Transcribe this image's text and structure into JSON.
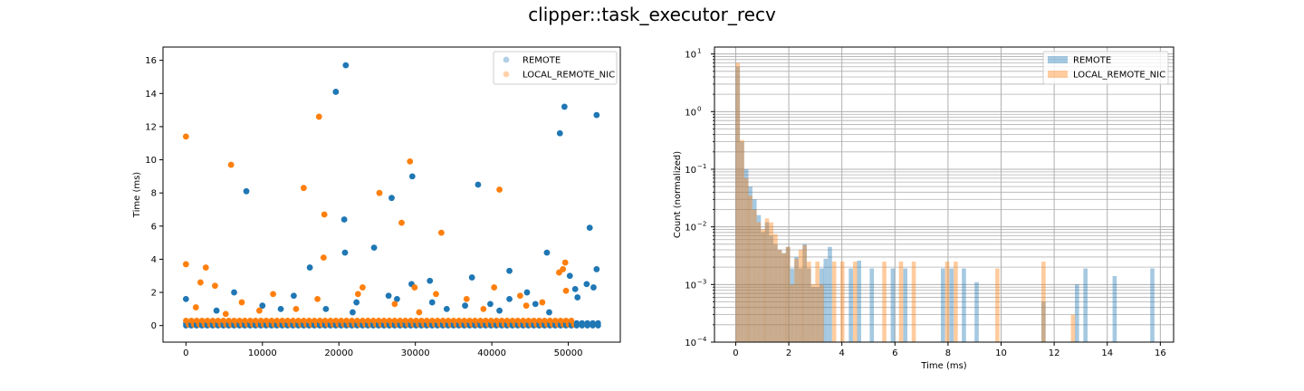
{
  "figure": {
    "title": "clipper::task_executor_recv"
  },
  "colors": {
    "remote": "#1f77b4",
    "local": "#ff7f0e",
    "grid": "#b0b0b0",
    "frame": "#000000"
  },
  "chart_data": [
    {
      "type": "scatter",
      "title": "",
      "xlabel": "",
      "ylabel": "Time (ms)",
      "xlim": [
        -3000,
        56800
      ],
      "ylim": [
        -1.0,
        16.8
      ],
      "xticks": [
        0,
        10000,
        20000,
        30000,
        40000,
        50000
      ],
      "xtick_labels": [
        "0",
        "10000",
        "20000",
        "30000",
        "40000",
        "50000"
      ],
      "yticks": [
        0,
        2,
        4,
        6,
        8,
        10,
        12,
        14,
        16
      ],
      "ytick_labels": [
        "0",
        "2",
        "4",
        "6",
        "8",
        "10",
        "12",
        "14",
        "16"
      ],
      "legend": {
        "placement": "top-right",
        "entries": [
          "REMOTE",
          "LOCAL_REMOTE_NIC"
        ]
      },
      "series": [
        {
          "name": "REMOTE",
          "color": "#1f77b4",
          "alpha": 0.35,
          "points": [
            [
              20900,
              15.7
            ],
            [
              19600,
              14.1
            ],
            [
              53700,
              12.7
            ],
            [
              49500,
              13.2
            ],
            [
              48900,
              11.6
            ],
            [
              29600,
              9.0
            ],
            [
              7900,
              8.1
            ],
            [
              38200,
              8.5
            ],
            [
              26900,
              7.7
            ],
            [
              20700,
              6.4
            ],
            [
              52800,
              5.9
            ],
            [
              24600,
              4.7
            ],
            [
              20800,
              4.4
            ],
            [
              47200,
              4.4
            ],
            [
              16200,
              3.5
            ],
            [
              53700,
              3.4
            ],
            [
              42300,
              3.3
            ],
            [
              50200,
              3.0
            ],
            [
              31900,
              2.7
            ],
            [
              37400,
              2.9
            ],
            [
              52400,
              2.5
            ],
            [
              50900,
              2.2
            ],
            [
              0,
              1.6
            ],
            [
              6300,
              2.0
            ],
            [
              14100,
              1.8
            ],
            [
              29500,
              2.5
            ],
            [
              44600,
              2.0
            ],
            [
              42300,
              1.6
            ],
            [
              51200,
              1.7
            ],
            [
              53300,
              2.3
            ],
            [
              26500,
              1.8
            ],
            [
              10000,
              1.2
            ],
            [
              22300,
              1.4
            ],
            [
              32200,
              1.4
            ],
            [
              36500,
              1.2
            ],
            [
              39800,
              1.3
            ],
            [
              45700,
              1.3
            ],
            [
              4000,
              0.9
            ],
            [
              12400,
              1.0
            ],
            [
              18300,
              1.0
            ],
            [
              34100,
              1.0
            ],
            [
              41000,
              0.9
            ],
            [
              47500,
              0.8
            ],
            [
              27600,
              1.6
            ],
            [
              21800,
              0.8
            ]
          ]
        },
        {
          "name": "LOCAL_REMOTE_NIC",
          "color": "#ff7f0e",
          "alpha": 0.35,
          "points": [
            [
              0,
              11.4
            ],
            [
              17400,
              12.6
            ],
            [
              5900,
              9.7
            ],
            [
              29300,
              9.9
            ],
            [
              15400,
              8.3
            ],
            [
              41000,
              8.2
            ],
            [
              25300,
              8.0
            ],
            [
              18100,
              6.7
            ],
            [
              28200,
              6.2
            ],
            [
              33400,
              5.6
            ],
            [
              0,
              3.7
            ],
            [
              18000,
              4.1
            ],
            [
              2600,
              3.5
            ],
            [
              48800,
              3.2
            ],
            [
              49600,
              3.8
            ],
            [
              49300,
              3.4
            ],
            [
              3800,
              2.4
            ],
            [
              1900,
              2.6
            ],
            [
              29900,
              2.3
            ],
            [
              23100,
              2.3
            ],
            [
              40300,
              2.3
            ],
            [
              49700,
              2.1
            ],
            [
              11400,
              1.9
            ],
            [
              17200,
              1.6
            ],
            [
              36700,
              1.6
            ],
            [
              32700,
              1.9
            ],
            [
              43700,
              1.8
            ],
            [
              1300,
              1.1
            ],
            [
              7300,
              1.4
            ],
            [
              22500,
              1.9
            ],
            [
              27300,
              1.3
            ],
            [
              46600,
              1.4
            ],
            [
              9600,
              0.9
            ],
            [
              14400,
              1.0
            ],
            [
              38900,
              1.0
            ],
            [
              44500,
              1.2
            ],
            [
              30500,
              0.8
            ],
            [
              5200,
              0.7
            ]
          ]
        }
      ]
    },
    {
      "type": "histogram",
      "title": "",
      "xlabel": "Time (ms)",
      "ylabel": "Count (normalized)",
      "xlim": [
        -0.8,
        16.5
      ],
      "ylim_log10": [
        -4,
        1.12
      ],
      "yscale": "log",
      "grid": true,
      "xticks": [
        0,
        2,
        4,
        6,
        8,
        10,
        12,
        14,
        16
      ],
      "xtick_labels": [
        "0",
        "2",
        "4",
        "6",
        "8",
        "10",
        "12",
        "14",
        "16"
      ],
      "yticks_log10": [
        -4,
        -3,
        -2,
        -1,
        0,
        1
      ],
      "ytick_labels": [
        "10",
        "10",
        "10",
        "10",
        "10",
        "10"
      ],
      "ytick_exponents": [
        "−4",
        "−3",
        "−2",
        "−1",
        "0",
        "1"
      ],
      "legend": {
        "placement": "top-right",
        "entries": [
          "REMOTE",
          "LOCAL_REMOTE_NIC"
        ]
      },
      "bin_width": 0.158,
      "series": [
        {
          "name": "REMOTE",
          "color": "#1f77b4",
          "alpha": 0.4,
          "bars": [
            [
              0.0,
              6.0
            ],
            [
              0.16,
              0.3
            ],
            [
              0.32,
              0.1
            ],
            [
              0.47,
              0.05
            ],
            [
              0.63,
              0.03
            ],
            [
              0.79,
              0.016
            ],
            [
              0.95,
              0.008
            ],
            [
              1.1,
              0.012
            ],
            [
              1.26,
              0.007
            ],
            [
              1.42,
              0.005
            ],
            [
              1.58,
              0.004
            ],
            [
              1.74,
              0.0035
            ],
            [
              1.89,
              0.0045
            ],
            [
              2.05,
              0.0019
            ],
            [
              2.21,
              0.003
            ],
            [
              2.37,
              0.0019
            ],
            [
              2.52,
              0.005
            ],
            [
              2.68,
              0.0019
            ],
            [
              2.84,
              0.0009
            ],
            [
              3.0,
              0.0009
            ],
            [
              3.16,
              0.0019
            ],
            [
              3.31,
              0.0028
            ],
            [
              3.47,
              0.0045
            ],
            [
              4.26,
              0.0019
            ],
            [
              4.57,
              0.0026
            ],
            [
              5.05,
              0.0019
            ],
            [
              5.84,
              0.0019
            ],
            [
              6.31,
              0.0019
            ],
            [
              7.73,
              0.0019
            ],
            [
              8.05,
              0.0019
            ],
            [
              8.52,
              0.0019
            ],
            [
              9.0,
              0.0011
            ],
            [
              11.52,
              0.0005
            ],
            [
              12.78,
              0.001
            ],
            [
              13.1,
              0.0019
            ],
            [
              14.2,
              0.0014
            ],
            [
              15.62,
              0.0019
            ]
          ]
        },
        {
          "name": "LOCAL_REMOTE_NIC",
          "color": "#ff7f0e",
          "alpha": 0.4,
          "bars": [
            [
              0.0,
              7.0
            ],
            [
              0.16,
              0.32
            ],
            [
              0.32,
              0.07
            ],
            [
              0.47,
              0.035
            ],
            [
              0.63,
              0.02
            ],
            [
              0.79,
              0.012
            ],
            [
              0.95,
              0.009
            ],
            [
              1.1,
              0.014
            ],
            [
              1.26,
              0.012
            ],
            [
              1.42,
              0.0075
            ],
            [
              1.58,
              0.004
            ],
            [
              1.74,
              0.0035
            ],
            [
              1.89,
              0.0045
            ],
            [
              2.05,
              0.001
            ],
            [
              2.21,
              0.0028
            ],
            [
              2.37,
              0.004
            ],
            [
              2.52,
              0.0048
            ],
            [
              2.68,
              0.0025
            ],
            [
              2.84,
              0.001
            ],
            [
              3.0,
              0.0025
            ],
            [
              3.16,
              0.001
            ],
            [
              3.63,
              0.0025
            ],
            [
              3.94,
              0.0025
            ],
            [
              4.42,
              0.0025
            ],
            [
              5.52,
              0.0025
            ],
            [
              6.15,
              0.0025
            ],
            [
              6.63,
              0.0025
            ],
            [
              7.89,
              0.0025
            ],
            [
              8.21,
              0.0025
            ],
            [
              9.78,
              0.0019
            ],
            [
              11.52,
              0.0025
            ],
            [
              12.63,
              0.0003
            ]
          ]
        }
      ]
    }
  ]
}
